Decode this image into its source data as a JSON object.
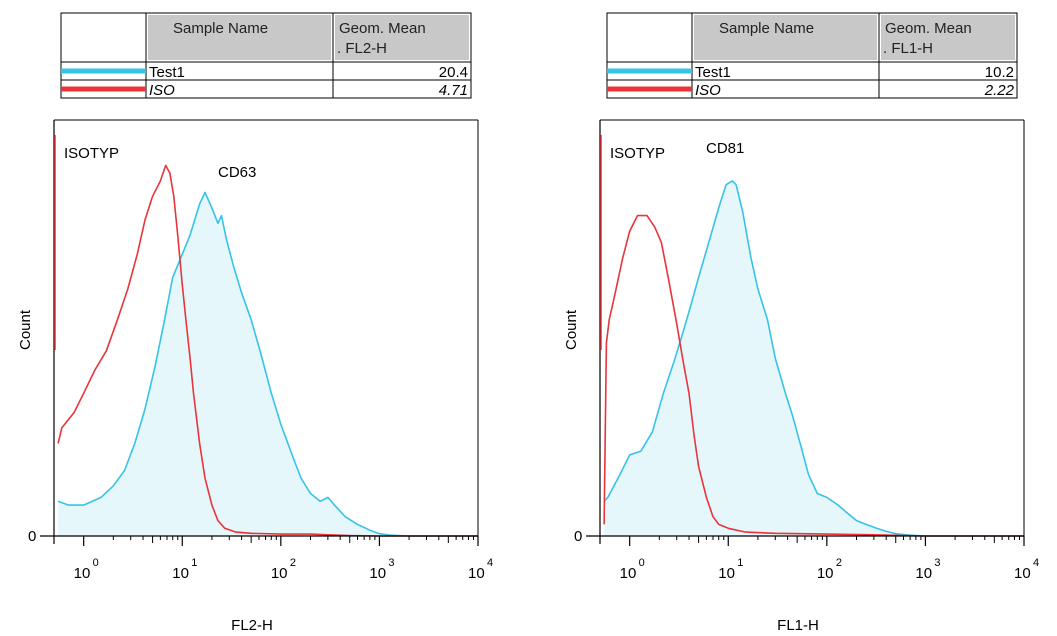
{
  "chart_data": [
    {
      "type": "area",
      "xlabel": "FL2-H",
      "ylabel": "Count",
      "x_scale": "log",
      "xlim": [
        0.5,
        10000
      ],
      "x_ticks": [
        {
          "base": "10",
          "exp": "0",
          "value": 1
        },
        {
          "base": "10",
          "exp": "1",
          "value": 10
        },
        {
          "base": "10",
          "exp": "2",
          "value": 100
        },
        {
          "base": "10",
          "exp": "3",
          "value": 1000
        },
        {
          "base": "10",
          "exp": "4",
          "value": 10000
        }
      ],
      "y_ticks": [
        {
          "label": "0",
          "value": 0
        }
      ],
      "ylim": [
        0,
        100
      ],
      "table": {
        "headers": [
          "Sample Name",
          "Geom. Mean\n. FL2-H"
        ],
        "header_line1": "Geom. Mean",
        "header_line2": ". FL2-H",
        "rows": [
          {
            "color": "#35c3e8",
            "name": "Test1",
            "value": "20.4",
            "italic": false
          },
          {
            "color": "#e8343a",
            "name": "ISO",
            "value": "4.71",
            "italic": true
          }
        ]
      },
      "annotations": {
        "iso": "ISOTYP",
        "marker": "CD63"
      },
      "series": [
        {
          "name": "Test1",
          "color": "#35c3e8",
          "fill": "#e6f7fc",
          "points": [
            [
              0.55,
              9
            ],
            [
              0.7,
              8
            ],
            [
              1.0,
              8
            ],
            [
              1.5,
              10
            ],
            [
              2.0,
              13
            ],
            [
              2.6,
              17
            ],
            [
              3.3,
              24
            ],
            [
              4.2,
              33
            ],
            [
              5.3,
              44
            ],
            [
              6.5,
              55
            ],
            [
              8.0,
              67
            ],
            [
              10,
              73
            ],
            [
              12,
              78
            ],
            [
              15,
              86
            ],
            [
              17,
              89
            ],
            [
              20,
              85
            ],
            [
              23,
              81
            ],
            [
              25,
              83
            ],
            [
              28,
              77
            ],
            [
              33,
              70
            ],
            [
              40,
              63
            ],
            [
              50,
              56
            ],
            [
              63,
              47
            ],
            [
              80,
              37
            ],
            [
              100,
              29
            ],
            [
              130,
              21
            ],
            [
              160,
              15
            ],
            [
              200,
              11
            ],
            [
              250,
              9
            ],
            [
              300,
              10
            ],
            [
              350,
              8
            ],
            [
              450,
              5
            ],
            [
              600,
              3
            ],
            [
              800,
              1.5
            ],
            [
              1000,
              0.6
            ],
            [
              1300,
              0.2
            ],
            [
              2000,
              0
            ],
            [
              10000,
              0
            ]
          ]
        },
        {
          "name": "ISO",
          "color": "#e8343a",
          "fill": "none",
          "points": [
            [
              0.55,
              24
            ],
            [
              0.6,
              28
            ],
            [
              0.8,
              32
            ],
            [
              1.0,
              37
            ],
            [
              1.3,
              43
            ],
            [
              1.7,
              48
            ],
            [
              2.2,
              56
            ],
            [
              2.8,
              64
            ],
            [
              3.5,
              73
            ],
            [
              4.2,
              82
            ],
            [
              5.0,
              88
            ],
            [
              6.0,
              92
            ],
            [
              6.8,
              96
            ],
            [
              7.5,
              94
            ],
            [
              8.2,
              88
            ],
            [
              9.0,
              78
            ],
            [
              10,
              65
            ],
            [
              11,
              55
            ],
            [
              12,
              46
            ],
            [
              13,
              37
            ],
            [
              15,
              24
            ],
            [
              17,
              15
            ],
            [
              20,
              8
            ],
            [
              23,
              4
            ],
            [
              27,
              2
            ],
            [
              35,
              1
            ],
            [
              50,
              0.7
            ],
            [
              100,
              0.5
            ],
            [
              200,
              0.5
            ],
            [
              300,
              0.3
            ],
            [
              500,
              0.1
            ],
            [
              1000,
              0
            ],
            [
              10000,
              0
            ]
          ]
        }
      ]
    },
    {
      "type": "area",
      "xlabel": "FL1-H",
      "ylabel": "Count",
      "x_scale": "log",
      "xlim": [
        0.5,
        10000
      ],
      "x_ticks": [
        {
          "base": "10",
          "exp": "0",
          "value": 1
        },
        {
          "base": "10",
          "exp": "1",
          "value": 10
        },
        {
          "base": "10",
          "exp": "2",
          "value": 100
        },
        {
          "base": "10",
          "exp": "3",
          "value": 1000
        },
        {
          "base": "10",
          "exp": "4",
          "value": 10000
        }
      ],
      "y_ticks": [
        {
          "label": "0",
          "value": 0
        }
      ],
      "ylim": [
        0,
        100
      ],
      "table": {
        "headers": [
          "Sample Name",
          "Geom. Mean\n. FL1-H"
        ],
        "header_line1": "Geom. Mean",
        "header_line2": ". FL1-H",
        "rows": [
          {
            "color": "#35c3e8",
            "name": "Test1",
            "value": "10.2",
            "italic": false
          },
          {
            "color": "#e8343a",
            "name": "ISO",
            "value": "2.22",
            "italic": true
          }
        ]
      },
      "annotations": {
        "iso": "ISOTYP",
        "marker": "CD81"
      },
      "series": [
        {
          "name": "Test1",
          "color": "#35c3e8",
          "fill": "#e6f7fc",
          "points": [
            [
              0.55,
              9
            ],
            [
              0.6,
              10
            ],
            [
              0.8,
              16
            ],
            [
              1.0,
              21
            ],
            [
              1.3,
              22
            ],
            [
              1.7,
              27
            ],
            [
              2.2,
              37
            ],
            [
              2.8,
              45
            ],
            [
              3.5,
              53
            ],
            [
              4.2,
              60
            ],
            [
              5.0,
              67
            ],
            [
              6.5,
              77
            ],
            [
              8.0,
              85
            ],
            [
              9.5,
              91
            ],
            [
              11,
              92
            ],
            [
              12,
              91
            ],
            [
              14,
              84
            ],
            [
              17,
              72
            ],
            [
              20,
              64
            ],
            [
              25,
              56
            ],
            [
              30,
              46
            ],
            [
              38,
              37
            ],
            [
              45,
              31
            ],
            [
              55,
              23
            ],
            [
              65,
              16
            ],
            [
              80,
              11
            ],
            [
              100,
              10
            ],
            [
              130,
              8
            ],
            [
              160,
              6
            ],
            [
              200,
              4
            ],
            [
              250,
              3
            ],
            [
              320,
              2
            ],
            [
              400,
              1.2
            ],
            [
              500,
              0.6
            ],
            [
              700,
              0.2
            ],
            [
              1000,
              0
            ],
            [
              10000,
              0
            ]
          ]
        },
        {
          "name": "ISO",
          "color": "#e8343a",
          "fill": "none",
          "points": [
            [
              0.55,
              3
            ],
            [
              0.58,
              50
            ],
            [
              0.62,
              56
            ],
            [
              0.7,
              62
            ],
            [
              0.85,
              72
            ],
            [
              1.0,
              79
            ],
            [
              1.2,
              83
            ],
            [
              1.5,
              83
            ],
            [
              1.8,
              80
            ],
            [
              2.1,
              76
            ],
            [
              2.5,
              66
            ],
            [
              3.0,
              55
            ],
            [
              3.5,
              45
            ],
            [
              4.0,
              37
            ],
            [
              4.5,
              26
            ],
            [
              5.0,
              18
            ],
            [
              6.0,
              10
            ],
            [
              7.0,
              5
            ],
            [
              8.0,
              3
            ],
            [
              10,
              2
            ],
            [
              15,
              1
            ],
            [
              30,
              0.7
            ],
            [
              100,
              0.5
            ],
            [
              300,
              0.3
            ],
            [
              600,
              0.1
            ],
            [
              1000,
              0
            ],
            [
              10000,
              0
            ]
          ]
        }
      ]
    }
  ]
}
